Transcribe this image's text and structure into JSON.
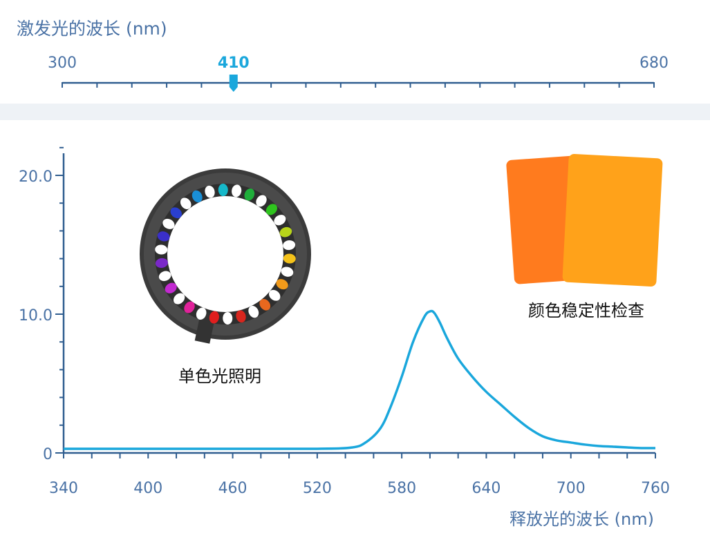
{
  "excitation": {
    "title": "激发光的波长 (nm)",
    "min_label": "300",
    "max_label": "680",
    "min": 300,
    "max": 680,
    "value": 410,
    "value_label": "410"
  },
  "chart_data": {
    "type": "line",
    "xlabel": "释放光的波长 (nm)",
    "ylabel": "",
    "xlim": [
      340,
      760
    ],
    "ylim": [
      0,
      22
    ],
    "x_ticks": [
      340,
      400,
      460,
      520,
      580,
      640,
      700,
      760
    ],
    "x_tick_labels": [
      "340",
      "400",
      "460",
      "520",
      "580",
      "640",
      "700",
      "760"
    ],
    "y_ticks": [
      0,
      10,
      20
    ],
    "y_tick_labels": [
      "0",
      "10.0",
      "20.0"
    ],
    "grid": false,
    "series": [
      {
        "color": "#1aa7dc",
        "x": [
          340,
          400,
          460,
          520,
          545,
          555,
          565,
          572,
          580,
          588,
          596,
          600,
          603,
          607,
          612,
          620,
          630,
          640,
          650,
          660,
          670,
          680,
          690,
          700,
          710,
          720,
          730,
          740,
          750,
          760
        ],
        "y": [
          0.3,
          0.3,
          0.3,
          0.3,
          0.4,
          0.8,
          1.8,
          3.3,
          5.5,
          8.0,
          9.8,
          10.2,
          10.1,
          9.4,
          8.3,
          6.8,
          5.5,
          4.4,
          3.5,
          2.6,
          1.8,
          1.2,
          0.9,
          0.75,
          0.6,
          0.5,
          0.45,
          0.4,
          0.35,
          0.35
        ]
      }
    ]
  },
  "annotations": {
    "ring_label": "单色光照明",
    "cards_label": "颜色稳定性检查"
  },
  "colors": {
    "axis": "#4a72a5",
    "accent": "#1aa7dc",
    "card_left": "#ff7b1e",
    "card_right": "#ffa21a",
    "ring_body": "#444444"
  },
  "icons": {
    "ring": "led-ring-light-icon",
    "cards": "color-sample-cards-icon",
    "slider_thumb": "slider-thumb-icon"
  }
}
